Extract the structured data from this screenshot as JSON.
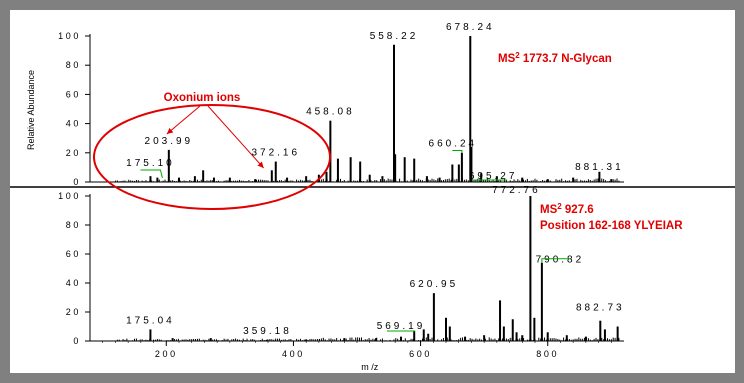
{
  "chart_data": [
    {
      "type": "line",
      "title": "MS² 1773.7 N-Glycan",
      "title_main": "MS",
      "title_sup": "2",
      "title_rest": " 1773.7 N-Glycan",
      "ylabel": "Relative Abundance",
      "xlim": [
        80,
        920
      ],
      "ylim": [
        0,
        100
      ],
      "yticks": [
        "100",
        "80",
        "60",
        "40",
        "20",
        "0"
      ],
      "annotation_label": "Oxonium ions",
      "annotation_targets": [
        204,
        372
      ],
      "peaks": [
        {
          "x": 175.1,
          "y": 4
        },
        {
          "x": 186,
          "y": 3
        },
        {
          "x": 204,
          "y": 22
        },
        {
          "x": 220,
          "y": 3
        },
        {
          "x": 245,
          "y": 4
        },
        {
          "x": 258,
          "y": 8
        },
        {
          "x": 275,
          "y": 3
        },
        {
          "x": 300,
          "y": 3
        },
        {
          "x": 340,
          "y": 2
        },
        {
          "x": 366,
          "y": 8
        },
        {
          "x": 372.2,
          "y": 14
        },
        {
          "x": 390,
          "y": 3
        },
        {
          "x": 420,
          "y": 4
        },
        {
          "x": 440,
          "y": 5
        },
        {
          "x": 452,
          "y": 7
        },
        {
          "x": 458.1,
          "y": 42
        },
        {
          "x": 470,
          "y": 16
        },
        {
          "x": 490,
          "y": 17
        },
        {
          "x": 505,
          "y": 14
        },
        {
          "x": 520,
          "y": 5
        },
        {
          "x": 540,
          "y": 4
        },
        {
          "x": 558.2,
          "y": 94
        },
        {
          "x": 560,
          "y": 19
        },
        {
          "x": 575,
          "y": 17
        },
        {
          "x": 590,
          "y": 16
        },
        {
          "x": 610,
          "y": 4
        },
        {
          "x": 630,
          "y": 3
        },
        {
          "x": 650,
          "y": 12
        },
        {
          "x": 660.2,
          "y": 12
        },
        {
          "x": 665,
          "y": 20
        },
        {
          "x": 678.2,
          "y": 100
        },
        {
          "x": 680,
          "y": 24
        },
        {
          "x": 695.3,
          "y": 6
        },
        {
          "x": 720,
          "y": 4
        },
        {
          "x": 760,
          "y": 3
        },
        {
          "x": 800,
          "y": 2
        },
        {
          "x": 840,
          "y": 3
        },
        {
          "x": 881.3,
          "y": 7
        },
        {
          "x": 900,
          "y": 2
        }
      ],
      "peak_labels": [
        {
          "x": 175.1,
          "y": 4,
          "text": "175.10"
        },
        {
          "x": 204,
          "y": 22,
          "text": "203.99"
        },
        {
          "x": 372.2,
          "y": 14,
          "text": "372.16"
        },
        {
          "x": 458.1,
          "y": 42,
          "text": "458.08"
        },
        {
          "x": 558.2,
          "y": 94,
          "text": "558.22"
        },
        {
          "x": 660.2,
          "y": 12,
          "text": "660.24"
        },
        {
          "x": 678.2,
          "y": 100,
          "text": "678.24"
        },
        {
          "x": 695.3,
          "y": 6,
          "text": "695.27"
        },
        {
          "x": 881.3,
          "y": 7,
          "text": "881.31"
        }
      ]
    },
    {
      "type": "line",
      "title": "MS² 927.6 Position 162-168 YLYEIAR",
      "title_main": "MS",
      "title_sup": "2",
      "title_rest": " 927.6",
      "title_line2": "Position 162-168 YLYEIAR",
      "xlabel": "m /z",
      "xlim": [
        80,
        920
      ],
      "ylim": [
        0,
        100
      ],
      "xticks": [
        "200",
        "400",
        "600",
        "800"
      ],
      "yticks": [
        "100",
        "80",
        "60",
        "40",
        "20",
        "0"
      ],
      "peaks": [
        {
          "x": 175.04,
          "y": 8
        },
        {
          "x": 210,
          "y": 2
        },
        {
          "x": 270,
          "y": 2
        },
        {
          "x": 359.18,
          "y": 1
        },
        {
          "x": 420,
          "y": 1
        },
        {
          "x": 480,
          "y": 2
        },
        {
          "x": 530,
          "y": 2
        },
        {
          "x": 569.19,
          "y": 3
        },
        {
          "x": 590,
          "y": 7
        },
        {
          "x": 605,
          "y": 8
        },
        {
          "x": 612,
          "y": 5
        },
        {
          "x": 620.95,
          "y": 33
        },
        {
          "x": 640,
          "y": 16
        },
        {
          "x": 646,
          "y": 10
        },
        {
          "x": 670,
          "y": 3
        },
        {
          "x": 700,
          "y": 4
        },
        {
          "x": 725,
          "y": 28
        },
        {
          "x": 731,
          "y": 10
        },
        {
          "x": 745,
          "y": 15
        },
        {
          "x": 751,
          "y": 6
        },
        {
          "x": 760,
          "y": 4
        },
        {
          "x": 772.76,
          "y": 100
        },
        {
          "x": 779,
          "y": 16
        },
        {
          "x": 790.82,
          "y": 54
        },
        {
          "x": 800,
          "y": 6
        },
        {
          "x": 830,
          "y": 4
        },
        {
          "x": 860,
          "y": 3
        },
        {
          "x": 882.73,
          "y": 14
        },
        {
          "x": 890,
          "y": 8
        },
        {
          "x": 910,
          "y": 10
        }
      ],
      "peak_labels": [
        {
          "x": 175.04,
          "y": 8,
          "text": "175.04"
        },
        {
          "x": 359.18,
          "y": 1,
          "text": "359.18"
        },
        {
          "x": 569.19,
          "y": 3,
          "text": "569.19"
        },
        {
          "x": 620.95,
          "y": 33,
          "text": "620.95"
        },
        {
          "x": 772.76,
          "y": 100,
          "text": "772.76"
        },
        {
          "x": 790.82,
          "y": 54,
          "text": "790.82"
        },
        {
          "x": 882.73,
          "y": 14,
          "text": "882.73"
        }
      ]
    }
  ],
  "colors": {
    "background": "#808080",
    "panel": "#ffffff",
    "peaks": "#000000",
    "annotation": "#e00000",
    "leader": "#00aa00"
  }
}
